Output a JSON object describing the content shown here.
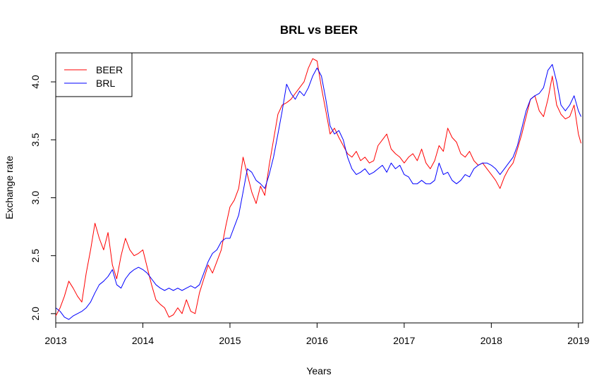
{
  "chart_data": {
    "type": "line",
    "title": "BRL vs BEER",
    "xlabel": "Years",
    "ylabel": "Exchange rate",
    "xlim": [
      2013.0,
      2019.05
    ],
    "ylim": [
      1.92,
      4.25
    ],
    "x_ticks": [
      2013,
      2014,
      2015,
      2016,
      2017,
      2018,
      2019
    ],
    "x_tick_labels": [
      "2013",
      "2014",
      "2015",
      "2016",
      "2017",
      "2018",
      "2019"
    ],
    "y_ticks": [
      2.0,
      2.5,
      3.0,
      3.5,
      4.0
    ],
    "y_tick_labels": [
      "2.0",
      "2.5",
      "3.0",
      "3.5",
      "4.0"
    ],
    "grid": false,
    "legend_position": "top-left",
    "series": [
      {
        "name": "BEER",
        "color": "#ff0000",
        "x": [
          2013.0,
          2013.05,
          2013.1,
          2013.15,
          2013.2,
          2013.25,
          2013.3,
          2013.35,
          2013.4,
          2013.45,
          2013.5,
          2013.55,
          2013.6,
          2013.65,
          2013.7,
          2013.75,
          2013.8,
          2013.85,
          2013.9,
          2013.95,
          2014.0,
          2014.05,
          2014.1,
          2014.15,
          2014.2,
          2014.25,
          2014.3,
          2014.35,
          2014.4,
          2014.45,
          2014.5,
          2014.55,
          2014.6,
          2014.65,
          2014.7,
          2014.75,
          2014.8,
          2014.85,
          2014.9,
          2014.95,
          2015.0,
          2015.05,
          2015.1,
          2015.15,
          2015.2,
          2015.25,
          2015.3,
          2015.35,
          2015.4,
          2015.45,
          2015.5,
          2015.55,
          2015.6,
          2015.65,
          2015.7,
          2015.75,
          2015.8,
          2015.85,
          2015.9,
          2015.95,
          2016.0,
          2016.05,
          2016.1,
          2016.15,
          2016.2,
          2016.25,
          2016.3,
          2016.35,
          2016.4,
          2016.45,
          2016.5,
          2016.55,
          2016.6,
          2016.65,
          2016.7,
          2016.75,
          2016.8,
          2016.85,
          2016.9,
          2016.95,
          2017.0,
          2017.05,
          2017.1,
          2017.15,
          2017.2,
          2017.25,
          2017.3,
          2017.35,
          2017.4,
          2017.45,
          2017.5,
          2017.55,
          2017.6,
          2017.65,
          2017.7,
          2017.75,
          2017.8,
          2017.85,
          2017.9,
          2017.95,
          2018.0,
          2018.05,
          2018.1,
          2018.15,
          2018.2,
          2018.25,
          2018.3,
          2018.35,
          2018.4,
          2018.45,
          2018.5,
          2018.55,
          2018.6,
          2018.65,
          2018.7,
          2018.75,
          2018.8,
          2018.85,
          2018.9,
          2018.95,
          2019.0,
          2019.03
        ],
        "y": [
          1.98,
          2.05,
          2.15,
          2.28,
          2.22,
          2.15,
          2.1,
          2.35,
          2.55,
          2.78,
          2.65,
          2.55,
          2.7,
          2.42,
          2.3,
          2.5,
          2.65,
          2.55,
          2.5,
          2.52,
          2.55,
          2.4,
          2.25,
          2.12,
          2.08,
          2.05,
          1.97,
          1.99,
          2.05,
          2.0,
          2.12,
          2.02,
          2.0,
          2.18,
          2.3,
          2.42,
          2.35,
          2.45,
          2.55,
          2.75,
          2.92,
          2.98,
          3.08,
          3.35,
          3.2,
          3.05,
          2.95,
          3.1,
          3.02,
          3.28,
          3.5,
          3.72,
          3.8,
          3.82,
          3.85,
          3.9,
          3.95,
          4.0,
          4.12,
          4.2,
          4.18,
          3.95,
          3.75,
          3.55,
          3.6,
          3.52,
          3.45,
          3.38,
          3.35,
          3.4,
          3.32,
          3.35,
          3.3,
          3.32,
          3.45,
          3.5,
          3.55,
          3.42,
          3.38,
          3.35,
          3.3,
          3.35,
          3.38,
          3.32,
          3.42,
          3.3,
          3.25,
          3.32,
          3.45,
          3.4,
          3.6,
          3.52,
          3.48,
          3.38,
          3.35,
          3.4,
          3.32,
          3.28,
          3.3,
          3.25,
          3.2,
          3.15,
          3.08,
          3.18,
          3.25,
          3.3,
          3.42,
          3.55,
          3.7,
          3.85,
          3.88,
          3.75,
          3.7,
          3.85,
          4.05,
          3.8,
          3.72,
          3.68,
          3.7,
          3.8,
          3.55,
          3.47
        ]
      },
      {
        "name": "BRL",
        "color": "#0000ff",
        "x": [
          2013.0,
          2013.05,
          2013.1,
          2013.15,
          2013.2,
          2013.25,
          2013.3,
          2013.35,
          2013.4,
          2013.45,
          2013.5,
          2013.55,
          2013.6,
          2013.65,
          2013.7,
          2013.75,
          2013.8,
          2013.85,
          2013.9,
          2013.95,
          2014.0,
          2014.05,
          2014.1,
          2014.15,
          2014.2,
          2014.25,
          2014.3,
          2014.35,
          2014.4,
          2014.45,
          2014.5,
          2014.55,
          2014.6,
          2014.65,
          2014.7,
          2014.75,
          2014.8,
          2014.85,
          2014.9,
          2014.95,
          2015.0,
          2015.05,
          2015.1,
          2015.15,
          2015.2,
          2015.25,
          2015.3,
          2015.35,
          2015.4,
          2015.45,
          2015.5,
          2015.55,
          2015.6,
          2015.65,
          2015.7,
          2015.75,
          2015.8,
          2015.85,
          2015.9,
          2015.95,
          2016.0,
          2016.05,
          2016.1,
          2016.15,
          2016.2,
          2016.25,
          2016.3,
          2016.35,
          2016.4,
          2016.45,
          2016.5,
          2016.55,
          2016.6,
          2016.65,
          2016.7,
          2016.75,
          2016.8,
          2016.85,
          2016.9,
          2016.95,
          2017.0,
          2017.05,
          2017.1,
          2017.15,
          2017.2,
          2017.25,
          2017.3,
          2017.35,
          2017.4,
          2017.45,
          2017.5,
          2017.55,
          2017.6,
          2017.65,
          2017.7,
          2017.75,
          2017.8,
          2017.85,
          2017.9,
          2017.95,
          2018.0,
          2018.05,
          2018.1,
          2018.15,
          2018.2,
          2018.25,
          2018.3,
          2018.35,
          2018.4,
          2018.45,
          2018.5,
          2018.55,
          2018.6,
          2018.65,
          2018.7,
          2018.75,
          2018.8,
          2018.85,
          2018.9,
          2018.95,
          2019.0,
          2019.03
        ],
        "y": [
          2.05,
          2.02,
          1.97,
          1.95,
          1.98,
          2.0,
          2.02,
          2.05,
          2.1,
          2.18,
          2.25,
          2.28,
          2.32,
          2.38,
          2.25,
          2.22,
          2.3,
          2.35,
          2.38,
          2.4,
          2.38,
          2.35,
          2.3,
          2.25,
          2.22,
          2.2,
          2.22,
          2.2,
          2.22,
          2.2,
          2.22,
          2.24,
          2.22,
          2.25,
          2.35,
          2.45,
          2.52,
          2.55,
          2.62,
          2.65,
          2.65,
          2.75,
          2.85,
          3.05,
          3.25,
          3.22,
          3.15,
          3.12,
          3.08,
          3.2,
          3.35,
          3.55,
          3.75,
          3.98,
          3.9,
          3.85,
          3.92,
          3.88,
          3.95,
          4.05,
          4.12,
          4.05,
          3.85,
          3.62,
          3.55,
          3.58,
          3.5,
          3.35,
          3.25,
          3.2,
          3.22,
          3.25,
          3.2,
          3.22,
          3.25,
          3.28,
          3.22,
          3.3,
          3.25,
          3.28,
          3.2,
          3.18,
          3.12,
          3.12,
          3.15,
          3.12,
          3.12,
          3.15,
          3.3,
          3.2,
          3.22,
          3.15,
          3.12,
          3.15,
          3.2,
          3.18,
          3.25,
          3.28,
          3.3,
          3.3,
          3.28,
          3.25,
          3.2,
          3.25,
          3.3,
          3.35,
          3.45,
          3.6,
          3.75,
          3.85,
          3.88,
          3.9,
          3.95,
          4.1,
          4.15,
          4.0,
          3.8,
          3.75,
          3.8,
          3.88,
          3.75,
          3.7
        ]
      }
    ]
  }
}
